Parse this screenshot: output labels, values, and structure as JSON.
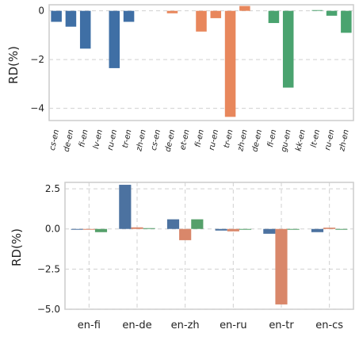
{
  "chart_data": [
    {
      "type": "bar",
      "ylabel": "RD(%)",
      "ylim": [
        -4.5,
        0.25
      ],
      "yticks": [
        0,
        -2,
        -4
      ],
      "grid": "horizontal dashed",
      "categories": [
        "cs-en",
        "de-en",
        "fi-en",
        "lv-en",
        "ru-en",
        "tr-en",
        "zh-en",
        "cs-en",
        "de-en",
        "et-en",
        "fi-en",
        "ru-en",
        "tr-en",
        "zh-en",
        "de-en",
        "fi-en",
        "gu-en",
        "kk-en",
        "lt-en",
        "ru-en",
        "zh-en"
      ],
      "values": [
        -0.45,
        -0.65,
        -1.55,
        0.0,
        -2.35,
        -0.45,
        0.0,
        0.0,
        -0.1,
        0.0,
        -0.85,
        -0.3,
        -4.35,
        0.2,
        0.0,
        -0.5,
        -3.15,
        0.0,
        0.03,
        -0.2,
        -0.9
      ],
      "group_colors": [
        "#3f6fa5",
        "#e8875c",
        "#4aa36f"
      ],
      "groups": [
        [
          0,
          6
        ],
        [
          7,
          13
        ],
        [
          14,
          20
        ]
      ]
    },
    {
      "type": "bar",
      "ylabel": "RD(%)",
      "ylim": [
        -5.0,
        2.9
      ],
      "yticks": [
        2.5,
        0.0,
        -2.5,
        -5.0
      ],
      "grid": "dashed both",
      "categories": [
        "en-fi",
        "en-de",
        "en-zh",
        "en-ru",
        "en-tr",
        "en-cs"
      ],
      "series": [
        {
          "color": "#4c72a0",
          "values": [
            0.0,
            2.75,
            0.6,
            -0.1,
            -0.3,
            -0.2
          ]
        },
        {
          "color": "#d9876a",
          "values": [
            0.0,
            0.1,
            -0.7,
            -0.15,
            -4.7,
            0.08
          ]
        },
        {
          "color": "#55a06a",
          "values": [
            -0.2,
            0.05,
            0.6,
            0.0,
            0.0,
            0.0
          ]
        }
      ]
    }
  ]
}
